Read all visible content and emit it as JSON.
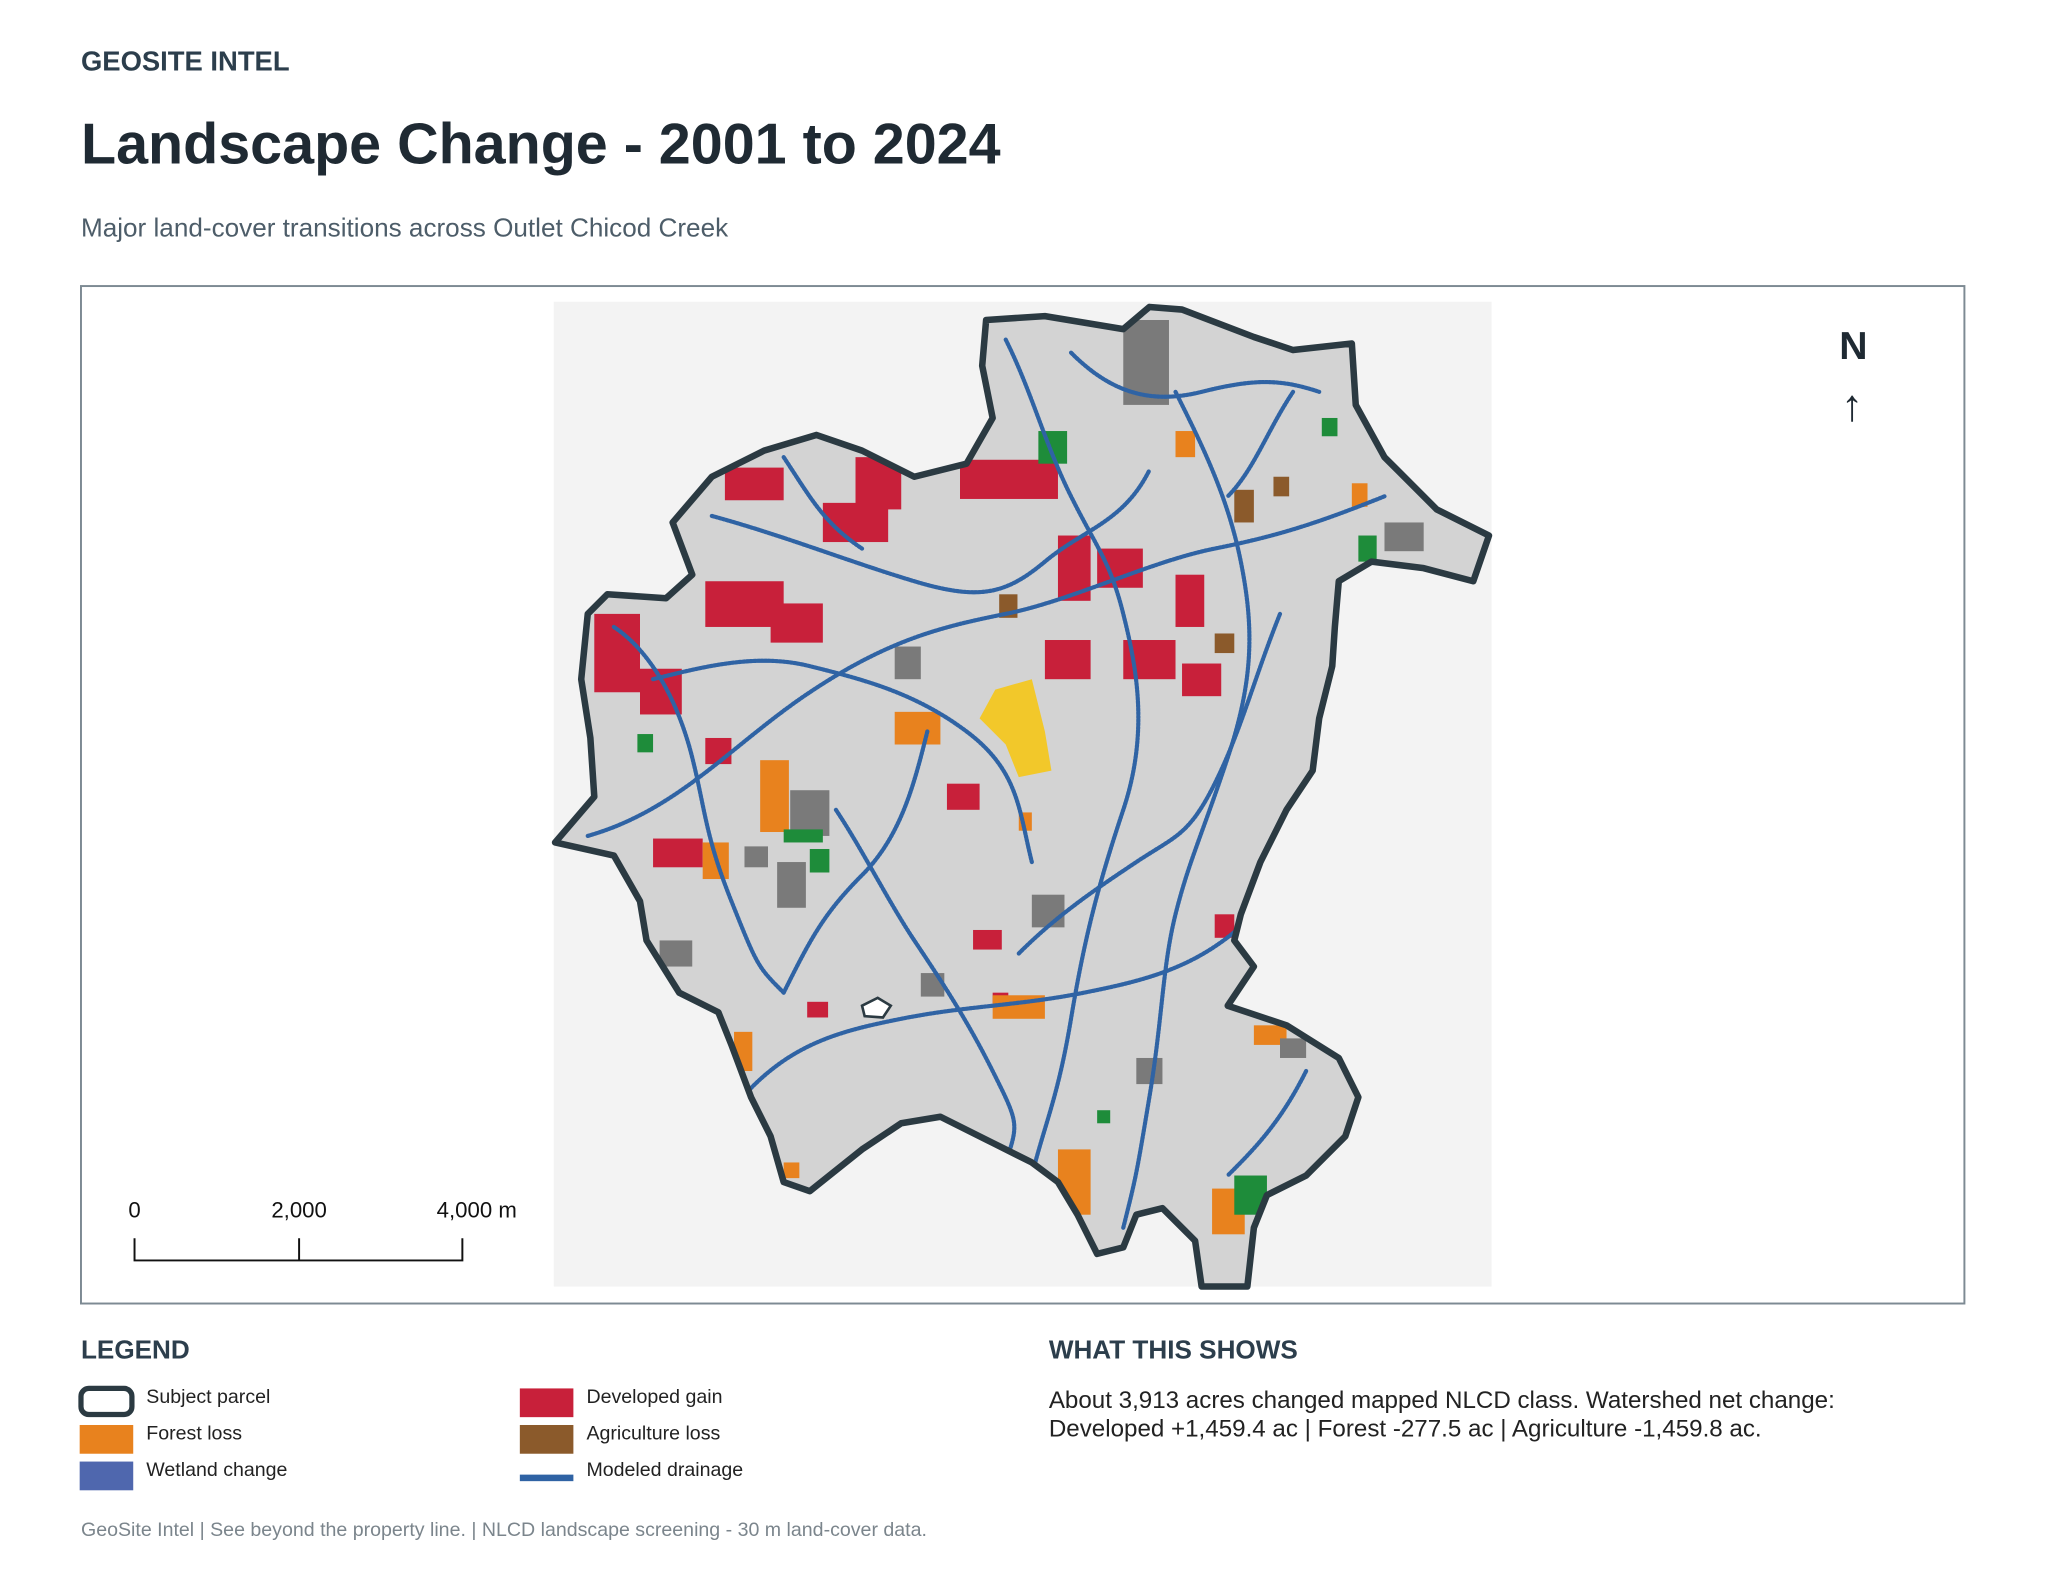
{
  "header": {
    "brand": "GEOSITE INTEL",
    "title": "Landscape Change - 2001 to 2024",
    "subtitle": "Major land-cover transitions across Outlet Chicod Creek"
  },
  "map": {
    "north": "N",
    "north_arrow": "↑",
    "scale_labels": [
      "0",
      "2,000",
      "4,000 m"
    ]
  },
  "legend": {
    "title": "LEGEND",
    "items": [
      "Subject parcel",
      "Forest loss",
      "Wetland change",
      "Developed gain",
      "Agriculture loss",
      "Modeled drainage"
    ]
  },
  "summary": {
    "title": "WHAT THIS SHOWS",
    "lines": [
      "About 3,913 acres changed mapped NLCD class. Watershed net change:",
      "Developed +1,459.4 ac | Forest -277.5 ac | Agriculture -1,459.8 ac."
    ]
  },
  "footer": "GeoSite Intel | See beyond the property line. | NLCD landscape screening - 30 m land-cover data."
}
